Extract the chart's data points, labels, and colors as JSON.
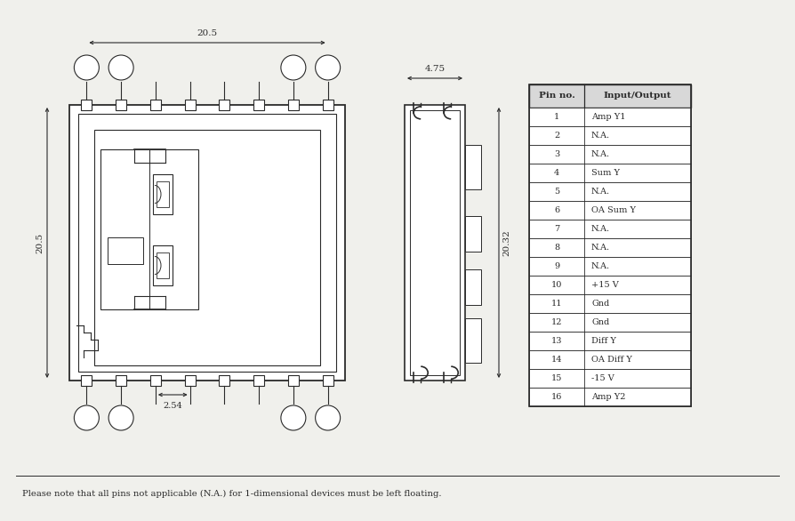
{
  "bg_color": "#f0f0ec",
  "line_color": "#2a2a2a",
  "table_header": [
    "Pin no.",
    "Input/Output"
  ],
  "table_rows": [
    [
      "1",
      "Amp Y1"
    ],
    [
      "2",
      "N.A."
    ],
    [
      "3",
      "N.A."
    ],
    [
      "4",
      "Sum Y"
    ],
    [
      "5",
      "N.A."
    ],
    [
      "6",
      "OA Sum Y"
    ],
    [
      "7",
      "N.A."
    ],
    [
      "8",
      "N.A."
    ],
    [
      "9",
      "N.A."
    ],
    [
      "10",
      "+15 V"
    ],
    [
      "11",
      "Gnd"
    ],
    [
      "12",
      "Gnd"
    ],
    [
      "13",
      "Diff Y"
    ],
    [
      "14",
      "OA Diff Y"
    ],
    [
      "15",
      "-15 V"
    ],
    [
      "16",
      "Amp Y2"
    ]
  ],
  "note": "Please note that all pins not applicable (N.A.) for 1-dimensional devices must be left floating.",
  "dim_20_5": "20.5",
  "dim_2_54": "2.54",
  "dim_4_75": "4.75",
  "dim_20_32": "20.32"
}
